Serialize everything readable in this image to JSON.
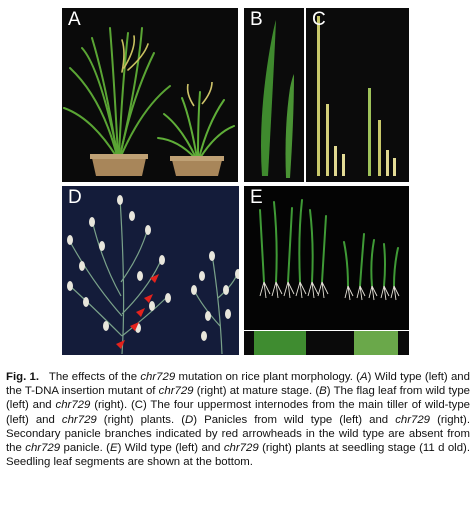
{
  "panels": {
    "a": "A",
    "b": "B",
    "c": "C",
    "d": "D",
    "e": "E"
  },
  "caption": {
    "figure_label": "Fig. 1.",
    "text_1": "The effects of the ",
    "gene": "chr729",
    "text_2": " mutation on rice plant morphology. (",
    "a": "A",
    "text_3": ") Wild type (left) and the T-DNA insertion mutant of ",
    "text_4": " (right) at mature stage. (",
    "b": "B",
    "text_5": ") The flag leaf from wild type (left) and ",
    "text_6": " (right). (C) The four uppermost internodes from the main tiller of wild-type (left) and ",
    "text_7": " (right) plants. (",
    "d": "D",
    "text_8": ") Panicles from wild type (left) and ",
    "text_9": " (right). Secondary panicle branches indicated by red arrowheads in the wild type are absent from the ",
    "text_10": " panicle. (",
    "e": "E",
    "text_11": ") Wild type (left) and ",
    "text_12": " (right) plants at seedling stage (11 d old). Seedling leaf segments are shown at the bottom."
  }
}
